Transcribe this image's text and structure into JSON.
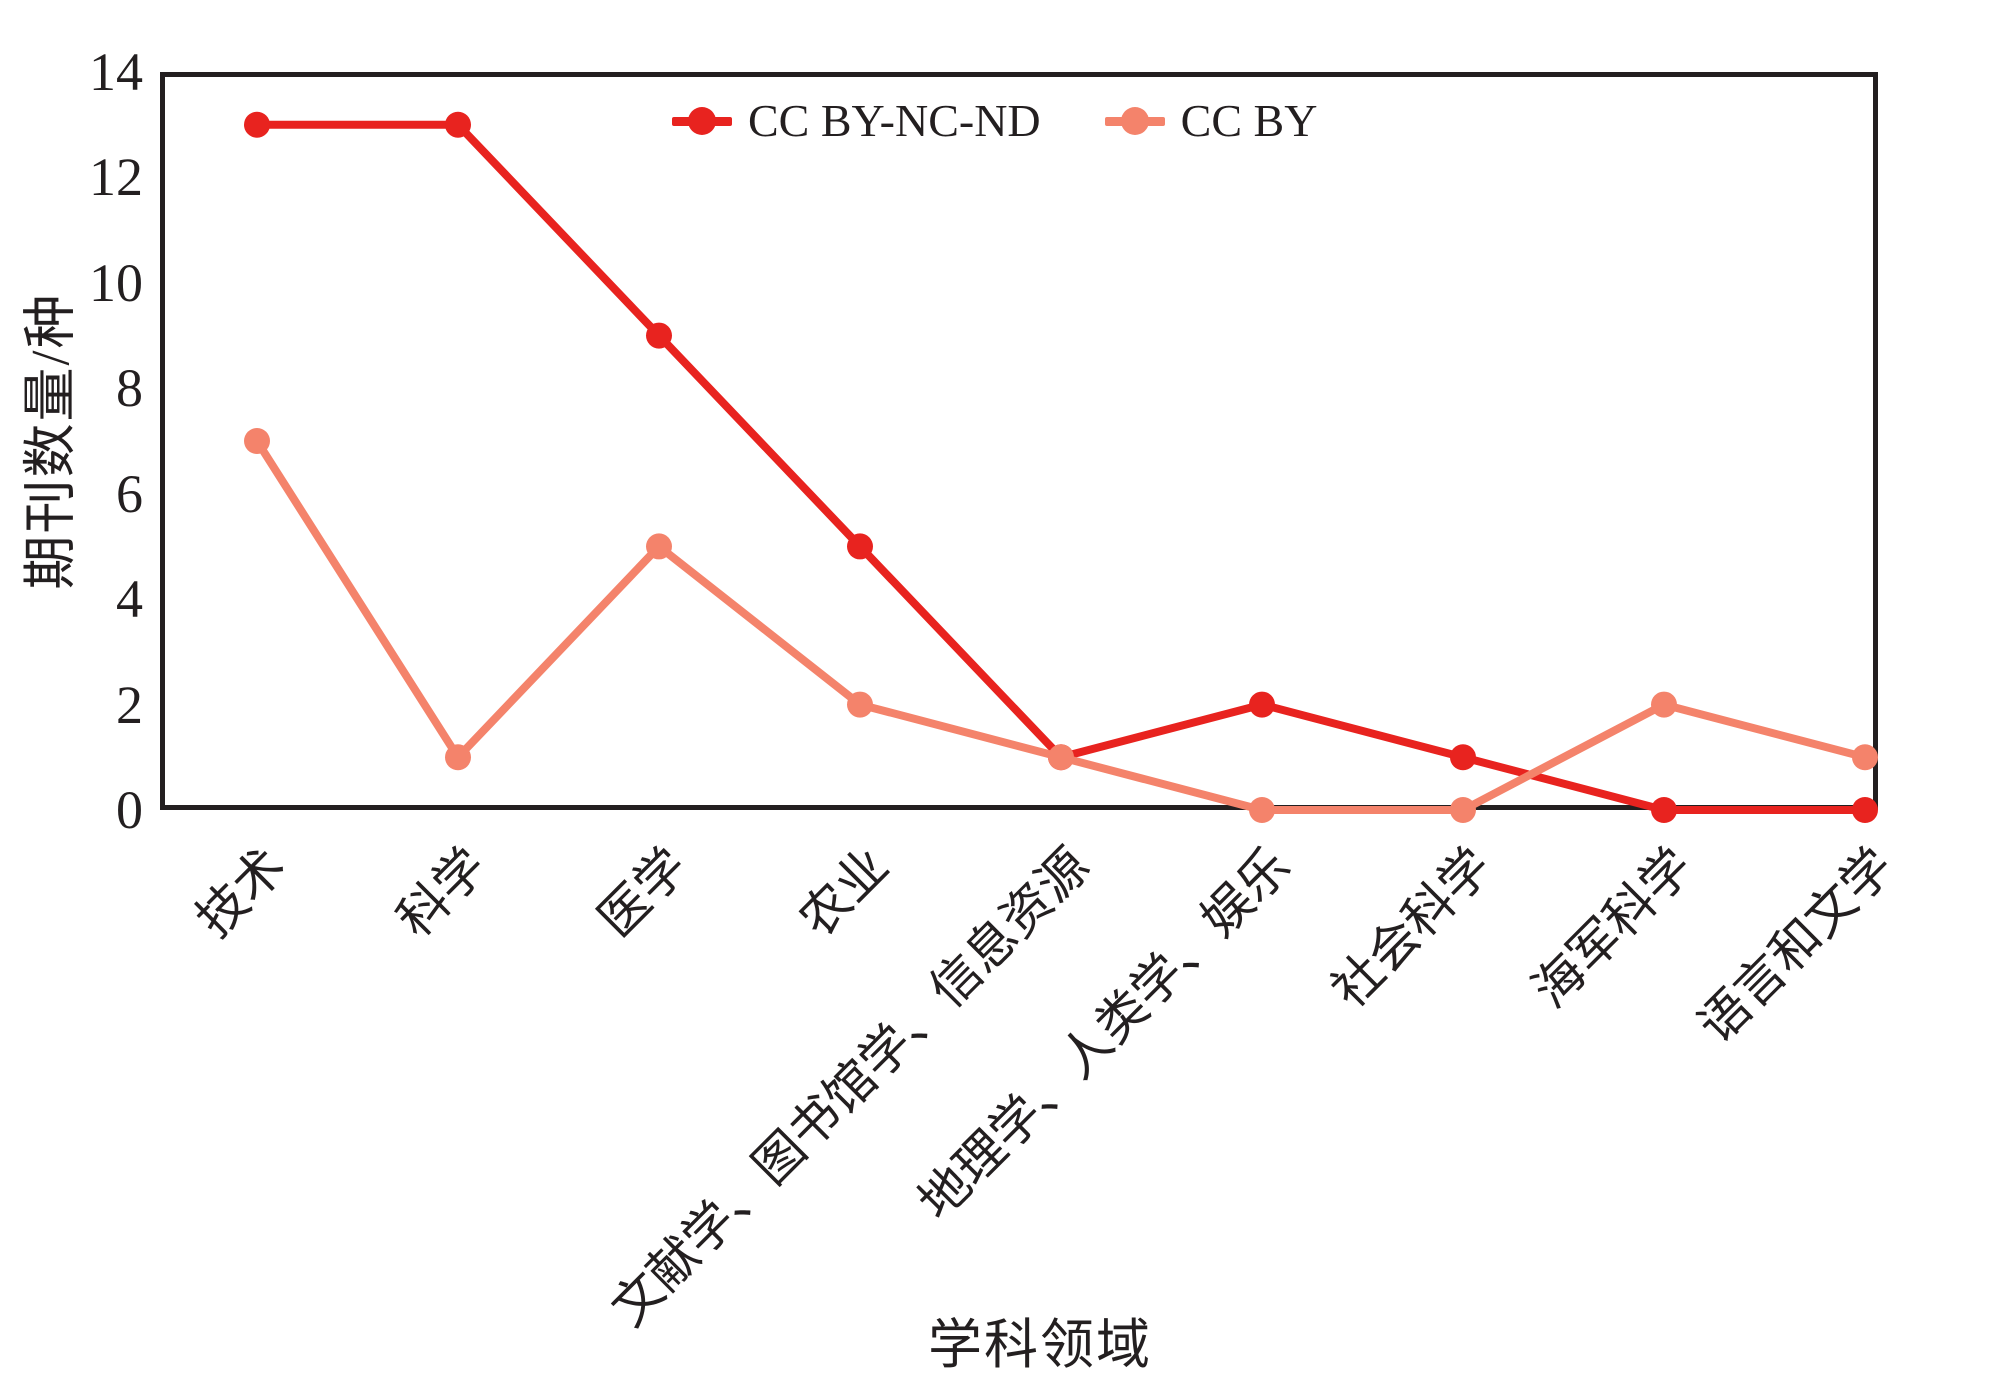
{
  "chart_data": {
    "type": "line",
    "title": "",
    "xlabel": "学科领域",
    "ylabel": "期刊数量/种",
    "categories": [
      "技术",
      "科学",
      "医学",
      "农业",
      "文献学、图书馆学、信息资源",
      "地理学、人类学、娱乐",
      "社会科学",
      "海军科学",
      "语言和文学"
    ],
    "series": [
      {
        "name": "CC BY-NC-ND",
        "color": "#e8231f",
        "values": [
          13,
          13,
          9,
          5,
          1,
          2,
          1,
          0,
          0
        ]
      },
      {
        "name": "CC BY",
        "color": "#f4836b",
        "values": [
          7,
          1,
          5,
          2,
          1,
          0,
          0,
          2,
          1
        ]
      }
    ],
    "ylim": [
      0,
      14
    ],
    "yticks": [
      0,
      2,
      4,
      6,
      8,
      10,
      12,
      14
    ],
    "grid": false,
    "legend_position": "top-center",
    "axis_color": "#231f20"
  }
}
